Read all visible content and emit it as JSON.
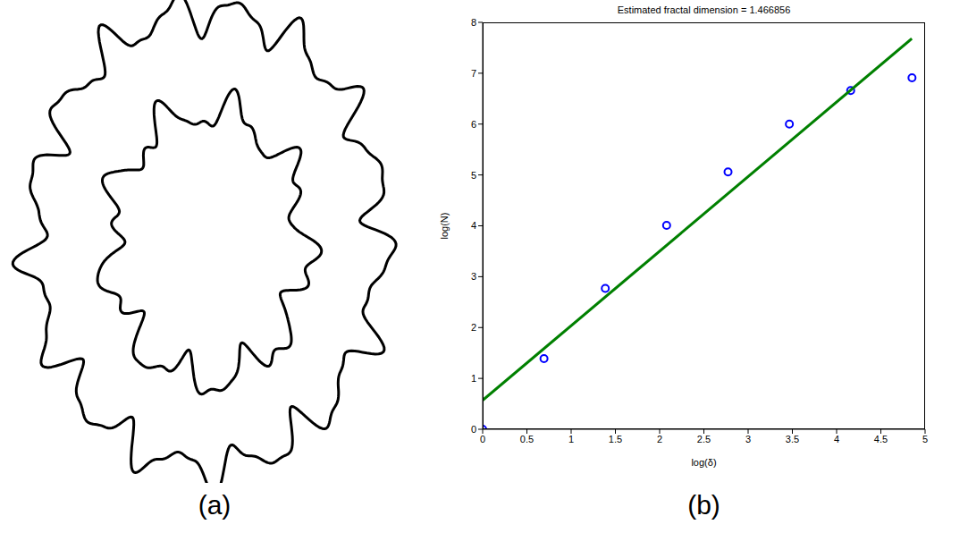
{
  "panel_labels": [
    "(a)",
    "(b)"
  ],
  "chart_data": {
    "type": "scatter",
    "title": "Estimated fractal dimension = 1.466856",
    "x_label": "log(δ)",
    "y_label": "log(N)",
    "xlim": [
      0,
      5
    ],
    "xticks": [
      0,
      0.5,
      1,
      1.5,
      2,
      2.5,
      3,
      3.5,
      4,
      4.5,
      5
    ],
    "ylim": [
      0,
      8
    ],
    "yticks": [
      0,
      1,
      2,
      3,
      4,
      5,
      6,
      7,
      8
    ],
    "grid": false,
    "series": [
      {
        "type": "scatter",
        "marker": "circle",
        "color": "#0000ff",
        "x": [
          0,
          0.693,
          1.386,
          2.079,
          2.773,
          3.466,
          4.159,
          4.852
        ],
        "values": [
          0,
          1.39,
          2.77,
          4.01,
          5.06,
          6.0,
          6.66,
          6.91
        ]
      },
      {
        "type": "line",
        "line_style": "solid",
        "color": "#008000",
        "x": [
          0,
          4.85
        ],
        "values": [
          0.57,
          7.68
        ]
      }
    ]
  }
}
